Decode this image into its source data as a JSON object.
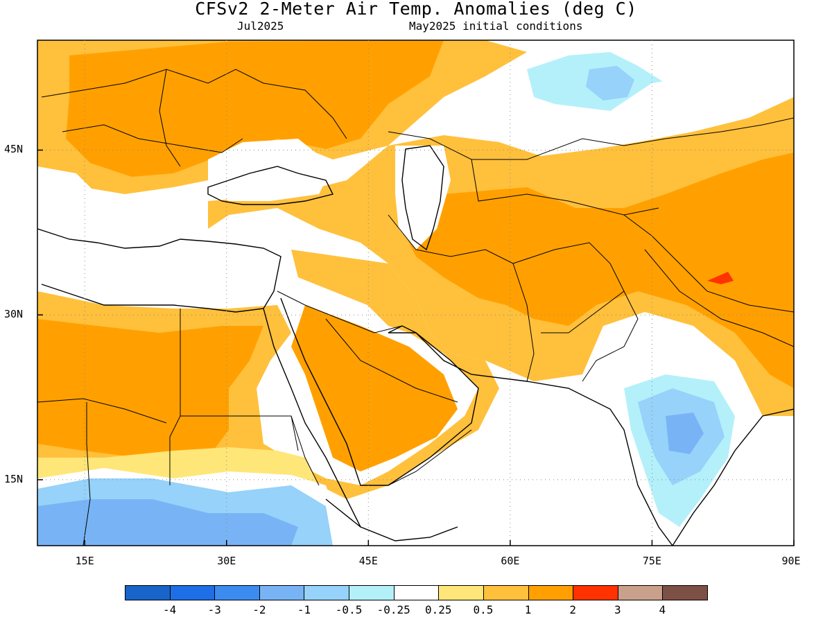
{
  "title": "CFSv2 2-Meter Air Temp. Anomalies (deg C)",
  "subtitle_left": "Jul2025",
  "subtitle_right": "May2025 initial conditions",
  "map": {
    "region": "Europe / Middle East / South Asia",
    "lon_range": [
      10,
      90
    ],
    "lat_range": [
      9,
      55
    ],
    "lat_ticks": [
      {
        "value": 45,
        "label": "45N"
      },
      {
        "value": 30,
        "label": "30N"
      },
      {
        "value": 15,
        "label": "15N"
      }
    ],
    "lon_ticks": [
      {
        "value": 15,
        "label": "15E"
      },
      {
        "value": 30,
        "label": "30E"
      },
      {
        "value": 45,
        "label": "45E"
      },
      {
        "value": 60,
        "label": "60E"
      },
      {
        "value": 75,
        "label": "75E"
      },
      {
        "value": 90,
        "label": "90E"
      }
    ],
    "gridlines": "dotted"
  },
  "colorbar": {
    "colors": [
      "#1964c8",
      "#1e6ee6",
      "#3c8cf0",
      "#78b4f5",
      "#96d2fa",
      "#b4f0fa",
      "#ffffff",
      "#ffe678",
      "#ffc03c",
      "#ffa000",
      "#ff3200",
      "#c8a08c",
      "#7d5046"
    ],
    "labels": [
      "-4",
      "-3",
      "-2",
      "-1",
      "-0.5",
      "-0.25",
      "0.25",
      "0.5",
      "1",
      "2",
      "3",
      "4"
    ]
  },
  "anomaly_colors": {
    "warm_moderate": "#ffa000",
    "warm_light": "#ffc03c",
    "warm_faint": "#ffe678",
    "neutral": "#ffffff",
    "cool_faint": "#b4f0fa",
    "cool_light": "#96d2fa",
    "cool_moderate": "#78b4f5",
    "warm_strong": "#ff3200"
  }
}
